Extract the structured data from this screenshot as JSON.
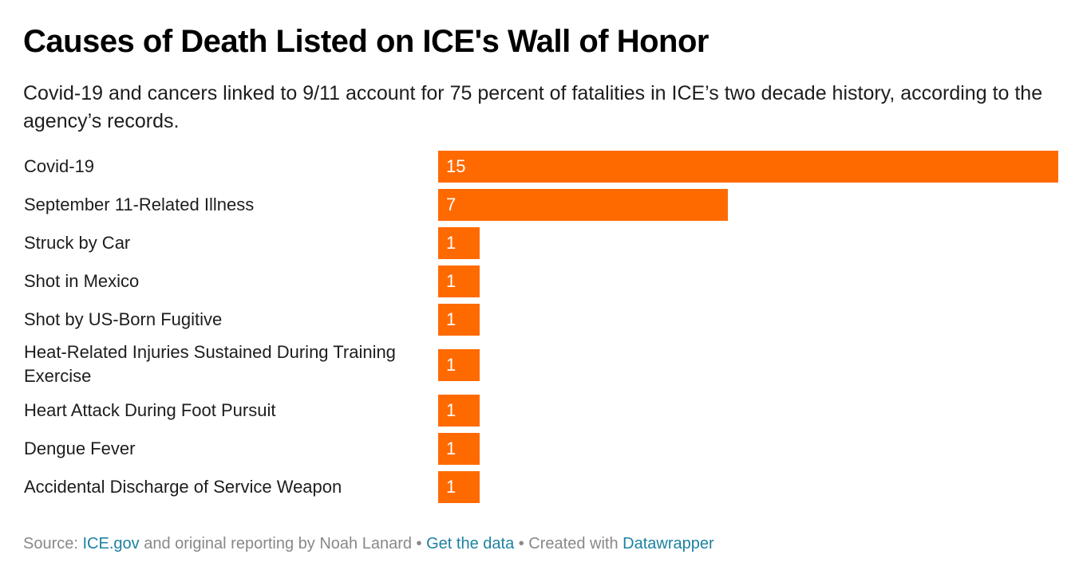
{
  "header": {
    "title": "Causes of Death Listed on ICE's Wall of Honor",
    "subtitle": "Covid-19 and cancers linked to 9/11 account for 75 percent of fatalities in ICE’s two decade history, according to the agency’s records."
  },
  "chart_data": {
    "type": "bar",
    "orientation": "horizontal",
    "title": "Causes of Death Listed on ICE's Wall of Honor",
    "xlabel": "",
    "ylabel": "",
    "xlim": [
      0,
      15
    ],
    "grid": false,
    "bar_color": "#ff6a00",
    "label_color": "#ffffff",
    "categories": [
      "Covid-19",
      "September 11-Related Illness",
      "Struck by Car",
      "Shot in Mexico",
      "Shot by US-Born Fugitive",
      "Heat-Related Injuries Sustained During Training Exercise",
      "Heart Attack During Foot Pursuit",
      "Dengue Fever",
      "Accidental Discharge of Service Weapon"
    ],
    "values": [
      15,
      7,
      1,
      1,
      1,
      1,
      1,
      1,
      1
    ]
  },
  "footer": {
    "source_prefix": "Source: ",
    "source_link": "ICE.gov",
    "source_suffix": " and original reporting by Noah Lanard",
    "separator1": " • ",
    "data_link": "Get the data",
    "separator2": " • Created with ",
    "tool_link": "Datawrapper"
  },
  "colors": {
    "bar": "#ff6a00",
    "link": "#1d81a2",
    "muted": "#888888"
  }
}
